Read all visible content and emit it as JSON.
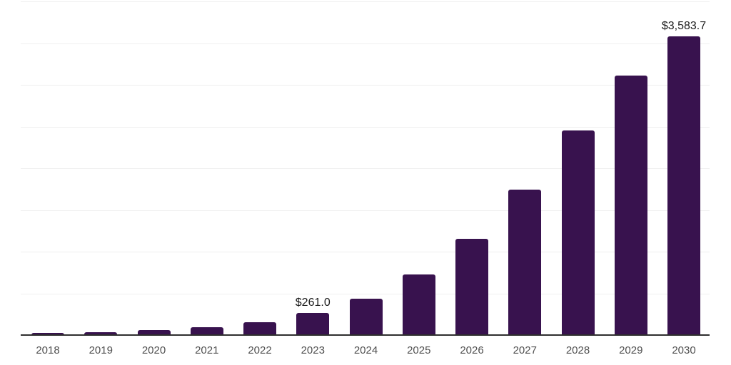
{
  "chart_data": {
    "type": "bar",
    "title": "",
    "xlabel": "",
    "ylabel": "",
    "categories": [
      "2018",
      "2019",
      "2020",
      "2021",
      "2022",
      "2023",
      "2024",
      "2025",
      "2026",
      "2027",
      "2028",
      "2029",
      "2030"
    ],
    "values": [
      22,
      38,
      58,
      90,
      158,
      261.0,
      435,
      725,
      1150,
      1740,
      2450,
      3115,
      3583.7
    ],
    "data_labels": [
      "",
      "",
      "",
      "",
      "",
      "$261.0",
      "",
      "",
      "",
      "",
      "",
      "",
      "$3,583.7"
    ],
    "ylim": [
      0,
      4000
    ],
    "gridline_step": 500,
    "grid": true,
    "legend": "none",
    "colors": {
      "bar": "#38124E",
      "gridline": "#EFEFEF",
      "axis": "#2E2E2E",
      "data_label": "#1A1A1A",
      "tick_label": "#4F4F4F",
      "background": "#FFFFFF"
    }
  }
}
